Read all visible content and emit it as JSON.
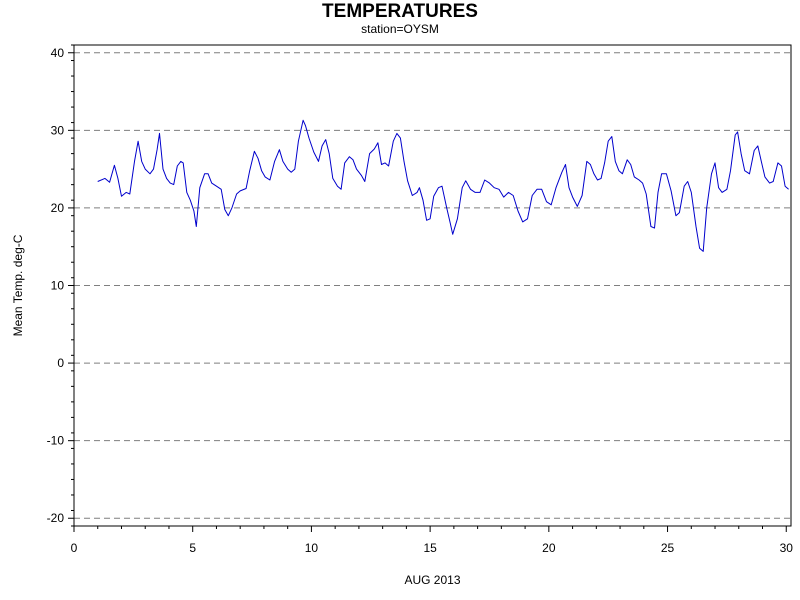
{
  "chart_data": {
    "type": "line",
    "title": "TEMPERATURES",
    "subtitle": "station=OYSM",
    "xlabel": "AUG 2013",
    "ylabel": "Mean Temp. deg-C",
    "xlim": [
      0,
      30.2
    ],
    "ylim": [
      -21,
      41
    ],
    "xticks": [
      0,
      5,
      10,
      15,
      20,
      25,
      30
    ],
    "yticks": [
      -20,
      -10,
      0,
      10,
      20,
      30,
      40
    ],
    "grid": "horizontal dashed at major y ticks",
    "legend": "none",
    "series": [
      {
        "color": "#0000cc",
        "points": [
          [
            1.0,
            23.4
          ],
          [
            1.3,
            23.8
          ],
          [
            1.5,
            23.3
          ],
          [
            1.7,
            25.5
          ],
          [
            1.85,
            23.8
          ],
          [
            2.0,
            21.5
          ],
          [
            2.2,
            22.0
          ],
          [
            2.35,
            21.8
          ],
          [
            2.55,
            26.0
          ],
          [
            2.7,
            28.6
          ],
          [
            2.85,
            26.0
          ],
          [
            3.0,
            25.0
          ],
          [
            3.2,
            24.4
          ],
          [
            3.35,
            25.0
          ],
          [
            3.5,
            27.5
          ],
          [
            3.6,
            29.6
          ],
          [
            3.75,
            25.0
          ],
          [
            3.9,
            23.8
          ],
          [
            4.05,
            23.2
          ],
          [
            4.2,
            23.0
          ],
          [
            4.35,
            25.4
          ],
          [
            4.5,
            26.0
          ],
          [
            4.6,
            25.8
          ],
          [
            4.75,
            22.0
          ],
          [
            4.9,
            21.0
          ],
          [
            5.05,
            19.6
          ],
          [
            5.15,
            17.6
          ],
          [
            5.3,
            22.6
          ],
          [
            5.5,
            24.4
          ],
          [
            5.65,
            24.4
          ],
          [
            5.8,
            23.2
          ],
          [
            6.0,
            22.8
          ],
          [
            6.2,
            22.4
          ],
          [
            6.35,
            19.8
          ],
          [
            6.5,
            19.0
          ],
          [
            6.65,
            20.0
          ],
          [
            6.85,
            21.8
          ],
          [
            7.0,
            22.2
          ],
          [
            7.25,
            22.5
          ],
          [
            7.4,
            24.8
          ],
          [
            7.6,
            27.3
          ],
          [
            7.75,
            26.4
          ],
          [
            7.9,
            24.8
          ],
          [
            8.05,
            24.0
          ],
          [
            8.25,
            23.6
          ],
          [
            8.45,
            26.0
          ],
          [
            8.65,
            27.5
          ],
          [
            8.8,
            26.0
          ],
          [
            9.0,
            25.0
          ],
          [
            9.15,
            24.6
          ],
          [
            9.3,
            25.0
          ],
          [
            9.45,
            28.6
          ],
          [
            9.65,
            31.3
          ],
          [
            9.75,
            30.6
          ],
          [
            9.9,
            29.0
          ],
          [
            10.1,
            27.2
          ],
          [
            10.3,
            26.0
          ],
          [
            10.45,
            28.0
          ],
          [
            10.6,
            28.8
          ],
          [
            10.75,
            27.0
          ],
          [
            10.9,
            23.8
          ],
          [
            11.1,
            22.8
          ],
          [
            11.25,
            22.4
          ],
          [
            11.4,
            25.8
          ],
          [
            11.6,
            26.6
          ],
          [
            11.75,
            26.2
          ],
          [
            11.9,
            25.0
          ],
          [
            12.1,
            24.2
          ],
          [
            12.25,
            23.4
          ],
          [
            12.45,
            27.0
          ],
          [
            12.65,
            27.6
          ],
          [
            12.8,
            28.4
          ],
          [
            12.95,
            25.6
          ],
          [
            13.1,
            25.8
          ],
          [
            13.25,
            25.4
          ],
          [
            13.45,
            28.6
          ],
          [
            13.6,
            29.6
          ],
          [
            13.75,
            29.0
          ],
          [
            13.9,
            26.0
          ],
          [
            14.05,
            23.5
          ],
          [
            14.25,
            21.6
          ],
          [
            14.45,
            22.0
          ],
          [
            14.55,
            22.6
          ],
          [
            14.7,
            21.0
          ],
          [
            14.85,
            18.4
          ],
          [
            15.0,
            18.6
          ],
          [
            15.15,
            21.5
          ],
          [
            15.35,
            22.6
          ],
          [
            15.5,
            22.8
          ],
          [
            15.7,
            20.0
          ],
          [
            15.85,
            18.0
          ],
          [
            15.95,
            16.6
          ],
          [
            16.15,
            18.6
          ],
          [
            16.35,
            22.6
          ],
          [
            16.5,
            23.5
          ],
          [
            16.7,
            22.4
          ],
          [
            16.9,
            22.0
          ],
          [
            17.1,
            22.0
          ],
          [
            17.3,
            23.6
          ],
          [
            17.5,
            23.2
          ],
          [
            17.7,
            22.6
          ],
          [
            17.9,
            22.4
          ],
          [
            18.1,
            21.4
          ],
          [
            18.3,
            22.0
          ],
          [
            18.5,
            21.6
          ],
          [
            18.7,
            19.6
          ],
          [
            18.9,
            18.2
          ],
          [
            19.1,
            18.6
          ],
          [
            19.3,
            21.6
          ],
          [
            19.5,
            22.4
          ],
          [
            19.7,
            22.4
          ],
          [
            19.9,
            20.8
          ],
          [
            20.1,
            20.4
          ],
          [
            20.3,
            22.6
          ],
          [
            20.55,
            24.6
          ],
          [
            20.7,
            25.6
          ],
          [
            20.85,
            22.6
          ],
          [
            21.0,
            21.4
          ],
          [
            21.2,
            20.2
          ],
          [
            21.4,
            21.6
          ],
          [
            21.6,
            26.0
          ],
          [
            21.75,
            25.6
          ],
          [
            21.9,
            24.4
          ],
          [
            22.05,
            23.6
          ],
          [
            22.2,
            23.8
          ],
          [
            22.35,
            25.8
          ],
          [
            22.5,
            28.6
          ],
          [
            22.65,
            29.2
          ],
          [
            22.8,
            26.0
          ],
          [
            22.95,
            24.8
          ],
          [
            23.1,
            24.4
          ],
          [
            23.3,
            26.2
          ],
          [
            23.45,
            25.6
          ],
          [
            23.6,
            24.0
          ],
          [
            23.8,
            23.6
          ],
          [
            23.95,
            23.2
          ],
          [
            24.1,
            21.8
          ],
          [
            24.3,
            17.6
          ],
          [
            24.45,
            17.4
          ],
          [
            24.6,
            22.0
          ],
          [
            24.75,
            24.4
          ],
          [
            24.95,
            24.4
          ],
          [
            25.15,
            22.2
          ],
          [
            25.35,
            19.0
          ],
          [
            25.5,
            19.4
          ],
          [
            25.7,
            22.8
          ],
          [
            25.85,
            23.4
          ],
          [
            26.0,
            22.0
          ],
          [
            26.2,
            17.6
          ],
          [
            26.35,
            14.8
          ],
          [
            26.5,
            14.4
          ],
          [
            26.65,
            20.0
          ],
          [
            26.85,
            24.4
          ],
          [
            27.0,
            25.8
          ],
          [
            27.15,
            22.6
          ],
          [
            27.3,
            22.0
          ],
          [
            27.5,
            22.4
          ],
          [
            27.65,
            24.8
          ],
          [
            27.85,
            29.4
          ],
          [
            27.95,
            29.8
          ],
          [
            28.1,
            27.0
          ],
          [
            28.25,
            24.8
          ],
          [
            28.45,
            24.4
          ],
          [
            28.65,
            27.4
          ],
          [
            28.8,
            28.0
          ],
          [
            28.95,
            26.0
          ],
          [
            29.1,
            24.0
          ],
          [
            29.3,
            23.2
          ],
          [
            29.45,
            23.4
          ],
          [
            29.65,
            25.8
          ],
          [
            29.8,
            25.4
          ],
          [
            29.95,
            22.8
          ],
          [
            30.1,
            22.4
          ]
        ]
      }
    ]
  }
}
